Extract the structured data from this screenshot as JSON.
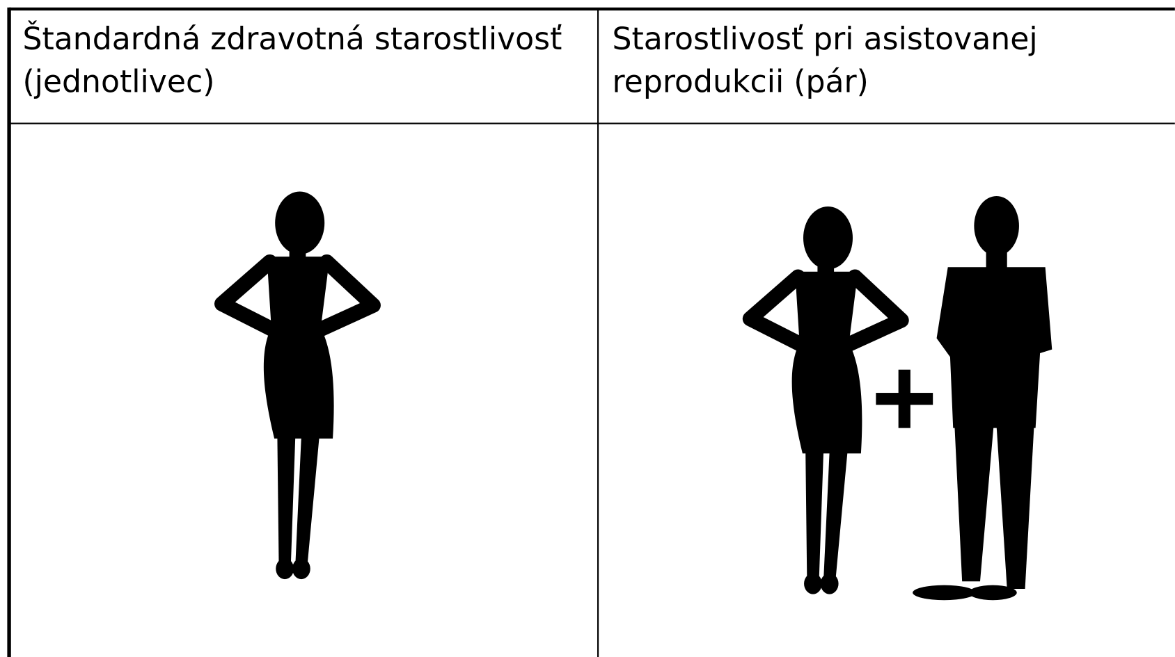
{
  "table": {
    "headers": [
      "Štandardná zdravotná starostlivosť (jednotlivec)",
      "Starostlivosť pri asistovanej reprodukcii (pár)"
    ]
  }
}
